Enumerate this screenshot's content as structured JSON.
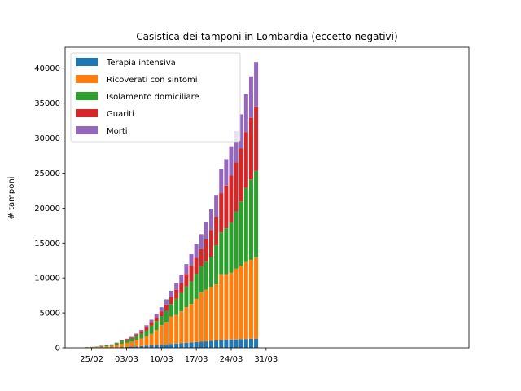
{
  "chart_data": {
    "type": "bar",
    "stacked": true,
    "title": "Casistica dei tamponi in Lombardia (eccetto negativi)",
    "xlabel": "",
    "ylabel": "# tamponi",
    "ylim": [
      0,
      43000
    ],
    "yticks": [
      0,
      5000,
      10000,
      15000,
      20000,
      25000,
      30000,
      35000,
      40000
    ],
    "xticks": [
      "25/02",
      "03/03",
      "10/03",
      "17/03",
      "24/03",
      "31/03"
    ],
    "categories": [
      "24/02",
      "25/02",
      "26/02",
      "27/02",
      "28/02",
      "29/02",
      "01/03",
      "02/03",
      "03/03",
      "04/03",
      "05/03",
      "06/03",
      "07/03",
      "08/03",
      "09/03",
      "10/03",
      "11/03",
      "12/03",
      "13/03",
      "14/03",
      "15/03",
      "16/03",
      "17/03",
      "18/03",
      "19/03",
      "20/03",
      "21/03",
      "22/03",
      "23/03",
      "24/03",
      "25/03",
      "26/03",
      "27/03",
      "28/03",
      "29/03"
    ],
    "legend": {
      "position": "upper left"
    },
    "grid": false,
    "series": [
      {
        "name": "Terapia intensiva",
        "color": "#1f77b4",
        "values": [
          19,
          25,
          25,
          36,
          45,
          56,
          85,
          106,
          127,
          167,
          209,
          244,
          309,
          359,
          399,
          440,
          466,
          560,
          605,
          650,
          732,
          767,
          823,
          879,
          924,
          1006,
          1050,
          1093,
          1142,
          1183,
          1194,
          1236,
          1263,
          1292,
          1319
        ]
      },
      {
        "name": "Ricoverati con sintomi",
        "color": "#ff7f0e",
        "values": [
          76,
          79,
          79,
          134,
          162,
          221,
          351,
          478,
          580,
          721,
          924,
          1088,
          1341,
          1639,
          2164,
          2802,
          3244,
          3922,
          4081,
          4571,
          5084,
          5511,
          6177,
          7026,
          7387,
          7735,
          8026,
          9439,
          9368,
          9566,
          10130,
          10500,
          11000,
          11300,
          11600
        ]
      },
      {
        "name": "Isolamento domiciliare",
        "color": "#2ca02c",
        "values": [
          15,
          29,
          62,
          90,
          147,
          155,
          242,
          343,
          380,
          443,
          531,
          714,
          847,
          1169,
          1250,
          1302,
          1587,
          1798,
          2325,
          2643,
          2949,
          3277,
          3600,
          3800,
          4000,
          4300,
          5600,
          6000,
          6600,
          7200,
          8200,
          9200,
          10600,
          11500,
          12400
        ]
      },
      {
        "name": "Guariti",
        "color": "#d62728",
        "values": [
          0,
          0,
          0,
          40,
          40,
          40,
          40,
          73,
          139,
          139,
          250,
          376,
          469,
          524,
          550,
          646,
          896,
          1000,
          1300,
          1400,
          1800,
          2200,
          2300,
          2400,
          3200,
          3800,
          4000,
          5600,
          6100,
          6700,
          7000,
          7600,
          8000,
          8800,
          9200
        ]
      },
      {
        "name": "Morti",
        "color": "#9467bd",
        "values": [
          6,
          9,
          9,
          14,
          17,
          23,
          38,
          55,
          73,
          98,
          135,
          154,
          267,
          333,
          468,
          617,
          744,
          890,
          966,
          1218,
          1420,
          1640,
          1959,
          2168,
          2549,
          2978,
          3095,
          3456,
          3776,
          4178,
          4474,
          4861,
          5402,
          5944,
          6360
        ]
      }
    ]
  }
}
